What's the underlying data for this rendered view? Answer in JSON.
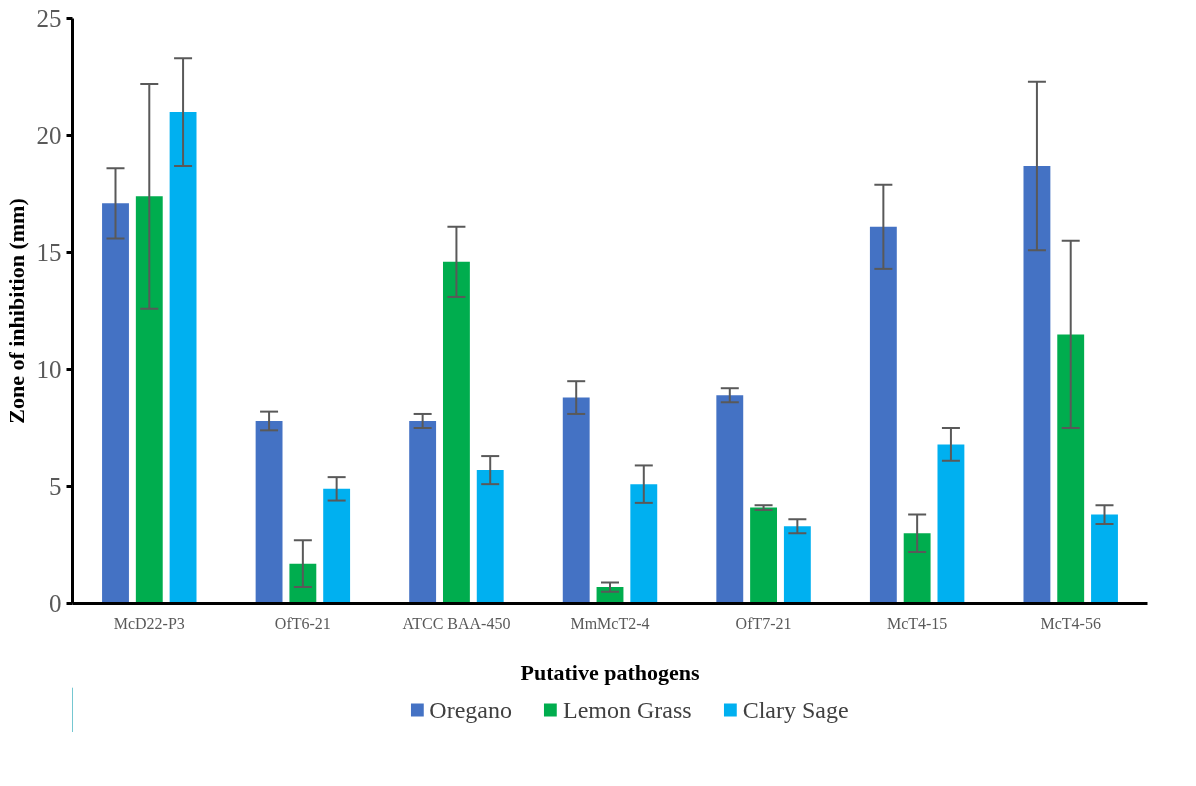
{
  "chart_data": {
    "type": "bar",
    "xlabel": "Putative pathogens",
    "ylabel": "Zone of inhibition (mm)",
    "categories": [
      "McD22-P3",
      "OfT6-21",
      "ATCC BAA-450",
      "MmMcT2-4",
      "OfT7-21",
      "McT4-15",
      "McT4-56"
    ],
    "series": [
      {
        "name": "Oregano",
        "color": "#4472c4",
        "values": [
          17.1,
          7.8,
          7.8,
          8.8,
          8.9,
          16.1,
          18.7
        ],
        "errors": [
          1.5,
          0.4,
          0.3,
          0.7,
          0.3,
          1.8,
          3.6
        ]
      },
      {
        "name": "Lemon Grass",
        "color": "#00ad4e",
        "values": [
          17.4,
          1.7,
          14.6,
          0.7,
          4.1,
          3.0,
          11.5
        ],
        "errors": [
          4.8,
          1.0,
          1.5,
          0.2,
          0.1,
          0.8,
          4.0
        ]
      },
      {
        "name": "Clary Sage",
        "color": "#00b0f0",
        "values": [
          21.0,
          4.9,
          5.7,
          5.1,
          3.3,
          6.8,
          3.8
        ],
        "errors": [
          2.3,
          0.5,
          0.6,
          0.8,
          0.3,
          0.7,
          0.4
        ]
      }
    ],
    "ylim": [
      0,
      25
    ],
    "yticks": [
      0,
      5,
      10,
      15,
      20,
      25
    ],
    "grid": false,
    "legend": "bottom"
  }
}
